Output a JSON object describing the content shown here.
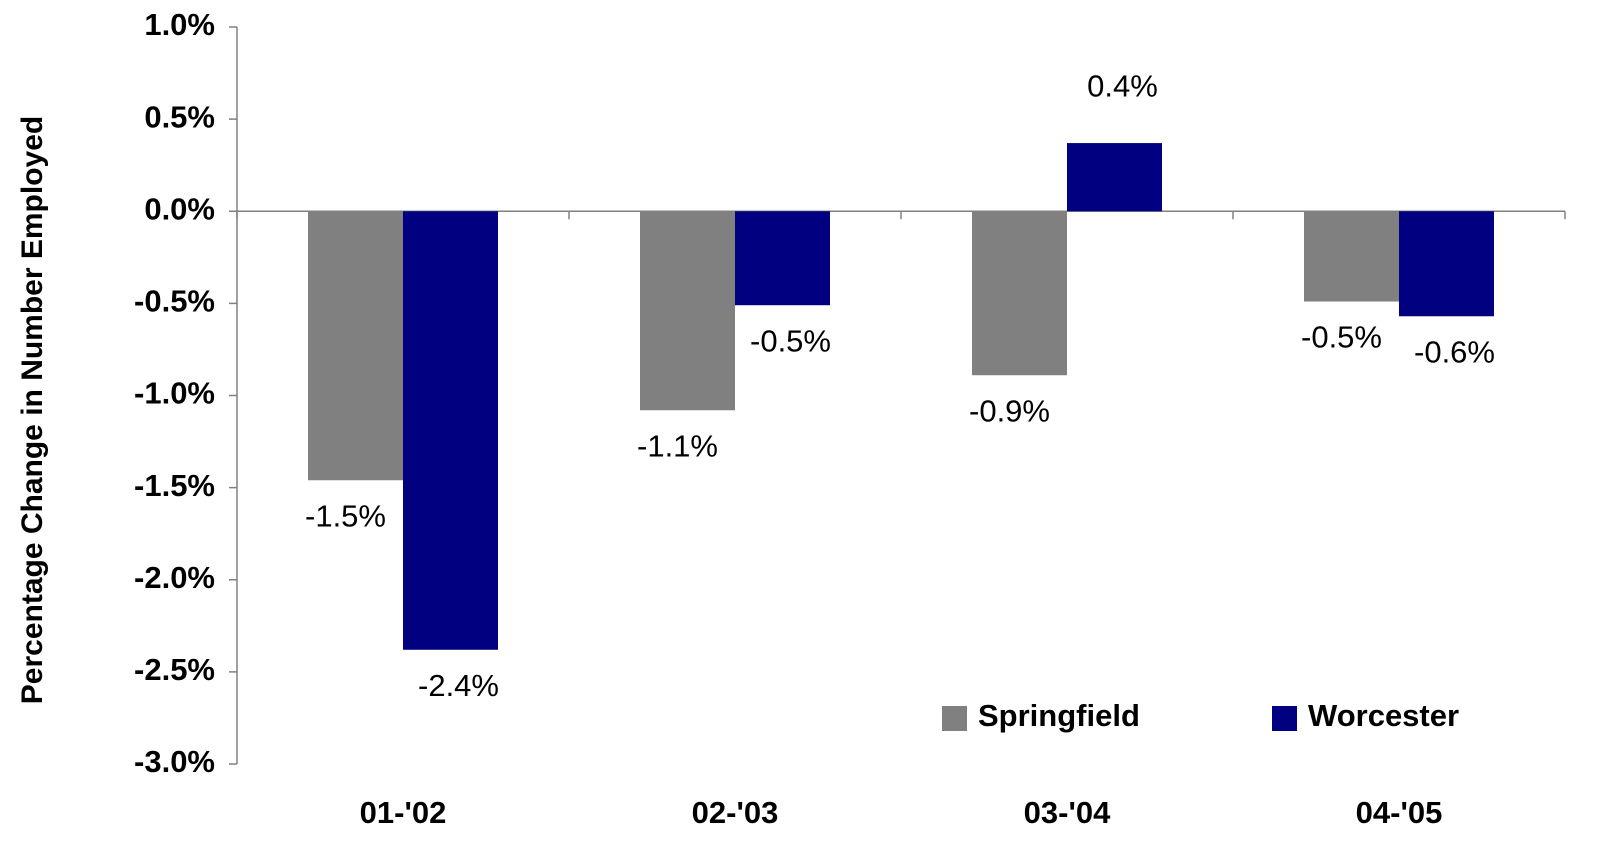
{
  "chart_data": {
    "type": "bar",
    "y_label": "Percentage Change in Number Employed",
    "categories": [
      "01-'02",
      "02-'03",
      "03-'04",
      "04-'05"
    ],
    "series": [
      {
        "name": "Springfield",
        "color": "#808080",
        "values": [
          -1.46,
          -1.08,
          -0.89,
          -0.49
        ],
        "value_labels": [
          "-1.5%",
          "-1.1%",
          "-0.9%",
          "-0.5%"
        ]
      },
      {
        "name": "Worcester",
        "color": "#000080",
        "values": [
          -2.38,
          -0.51,
          0.37,
          -0.57
        ],
        "value_labels": [
          "-2.4%",
          "-0.5%",
          "0.4%",
          "-0.6%"
        ]
      }
    ],
    "ylim": [
      -3,
      1
    ],
    "yticks": [
      {
        "value": -3,
        "label": "-3.0%"
      },
      {
        "value": -2.5,
        "label": "-2.5%"
      },
      {
        "value": -2,
        "label": "-2.0%"
      },
      {
        "value": -1.5,
        "label": "-1.5%"
      },
      {
        "value": -1,
        "label": "-1.0%"
      },
      {
        "value": -0.5,
        "label": "-0.5%"
      },
      {
        "value": 0,
        "label": "0.0%"
      },
      {
        "value": 0.5,
        "label": "0.5%"
      },
      {
        "value": 1,
        "label": "1.0%"
      }
    ],
    "grid": false,
    "legend": "lower right"
  }
}
